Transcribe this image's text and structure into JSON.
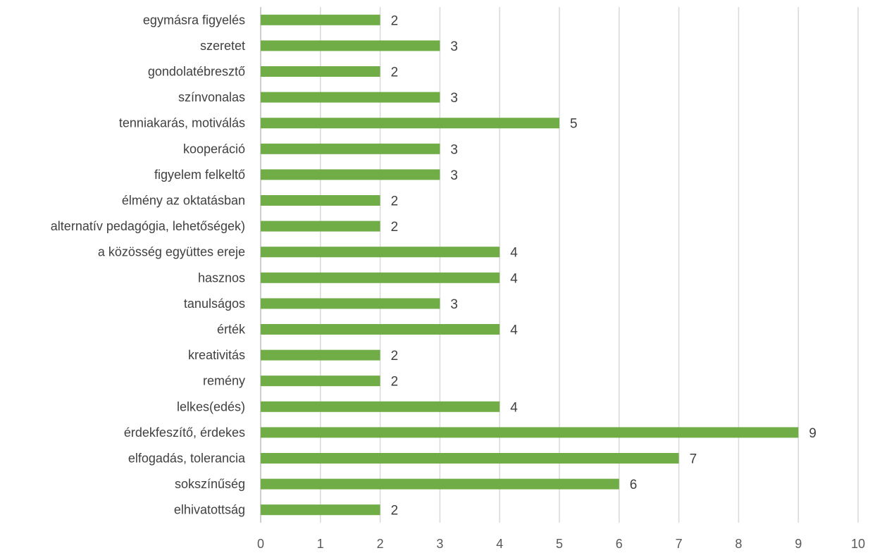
{
  "chart_data": {
    "type": "bar",
    "orientation": "horizontal",
    "title": "",
    "xlabel": "",
    "ylabel": "",
    "xlim": [
      0,
      10
    ],
    "ticks": [
      "0",
      "1",
      "2",
      "3",
      "4",
      "5",
      "6",
      "7",
      "8",
      "9",
      "10"
    ],
    "grid": true,
    "legend": "none",
    "bar_color": "#70ad47",
    "categories": [
      "egymásra figyelés",
      "szeretet",
      "gondolatébresztő",
      "színvonalas",
      "tenniakarás, motiválás",
      "kooperáció",
      "figyelem felkeltő",
      "élmény az oktatásban",
      "alternatív pedagógia, lehetőségek)",
      "a közösség együttes ereje",
      "hasznos",
      "tanulságos",
      "érték",
      "kreativitás",
      "remény",
      "lelkes(edés)",
      "érdekfeszítő, érdekes",
      "elfogadás, tolerancia",
      "sokszínűség",
      "elhivatottság"
    ],
    "values": [
      2,
      3,
      2,
      3,
      5,
      3,
      3,
      2,
      2,
      4,
      4,
      3,
      4,
      2,
      2,
      4,
      9,
      7,
      6,
      2
    ]
  }
}
